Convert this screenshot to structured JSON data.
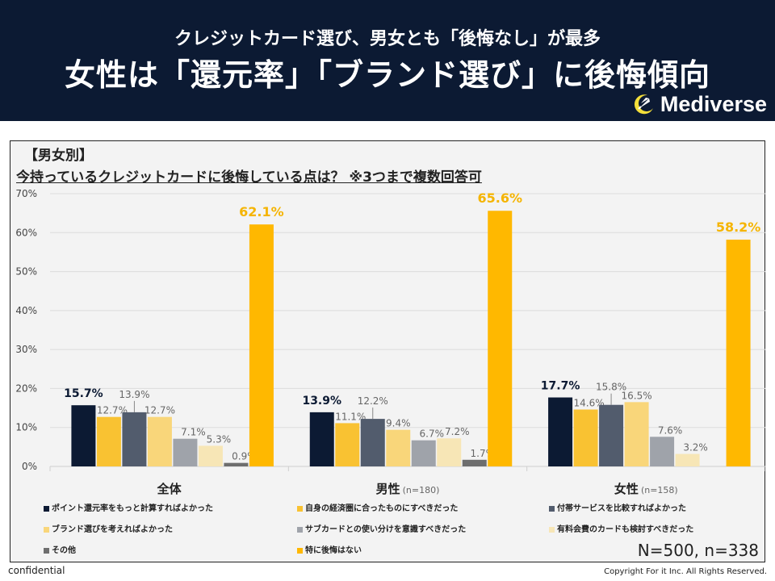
{
  "header": {
    "subtitle": "クレジットカード選び、男女とも「後悔なし」が最多",
    "title": "女性は「還元率」「ブランド選び」に後悔傾向",
    "logo_text": "Mediverse",
    "logo_icon": "rocket-moon-icon"
  },
  "panel": {
    "section_label": "【男女別】",
    "question": "今持っているクレジットカードに後悔している点は？ ※3つまで複数回答可",
    "sample_note": "N=500, n=338"
  },
  "footer": {
    "confidential": "confidential",
    "copyright": "Copyright For it Inc. All Rights Reserved."
  },
  "colors": {
    "header_bg": "#0c1a33",
    "highlight": "#ffb800"
  },
  "chart_data": {
    "type": "bar",
    "title": "今持っているクレジットカードに後悔している点は？ ※3つまで複数回答可",
    "xlabel": "",
    "ylabel": "",
    "ylim": [
      0,
      70
    ],
    "yticks": [
      "0%",
      "10%",
      "20%",
      "30%",
      "40%",
      "50%",
      "60%",
      "70%"
    ],
    "grid": true,
    "legend_position": "bottom",
    "categories": [
      {
        "label": "全体",
        "n": ""
      },
      {
        "label": "男性",
        "n": "(n=180)"
      },
      {
        "label": "女性",
        "n": "(n=158)"
      }
    ],
    "series": [
      {
        "name": "ポイント還元率をもっと計算すればよかった",
        "color": "#0c1a33",
        "values": [
          15.7,
          13.9,
          17.7
        ],
        "labels": [
          "15.7%",
          "13.9%",
          "17.7%"
        ],
        "emphasis": "bold-dark"
      },
      {
        "name": "自身の経済圏に合ったものにすべきだった",
        "color": "#f9c232",
        "values": [
          12.7,
          11.1,
          14.6
        ],
        "labels": [
          "12.7%",
          "11.1%",
          "14.6%"
        ]
      },
      {
        "name": "付帯サービスを比較すればよかった",
        "color": "#525c6d",
        "values": [
          13.9,
          12.2,
          15.8
        ],
        "labels": [
          "13.9%",
          "12.2%",
          "15.8%"
        ]
      },
      {
        "name": "ブランド選びを考えればよかった",
        "color": "#f9d67a",
        "values": [
          12.7,
          9.4,
          16.5
        ],
        "labels": [
          "12.7%",
          "9.4%",
          "16.5%"
        ]
      },
      {
        "name": "サブカードとの使い分けを意識すべきだった",
        "color": "#9fa3aa",
        "values": [
          7.1,
          6.7,
          7.6
        ],
        "labels": [
          "7.1%",
          "6.7%",
          "7.6%"
        ]
      },
      {
        "name": "有料会費のカードも検討すべきだった",
        "color": "#f7e6b6",
        "values": [
          5.3,
          7.2,
          3.2
        ],
        "labels": [
          "5.3%",
          "7.2%",
          "3.2%"
        ]
      },
      {
        "name": "その他",
        "color": "#6e6e6e",
        "values": [
          0.9,
          1.7,
          0
        ],
        "labels": [
          "0.9%",
          "1.7%",
          ""
        ]
      },
      {
        "name": "特に後悔はない",
        "color": "#ffb800",
        "values": [
          62.1,
          65.6,
          58.2
        ],
        "labels": [
          "62.1%",
          "65.6%",
          "58.2%"
        ],
        "emphasis": "bold-highlight"
      }
    ]
  }
}
